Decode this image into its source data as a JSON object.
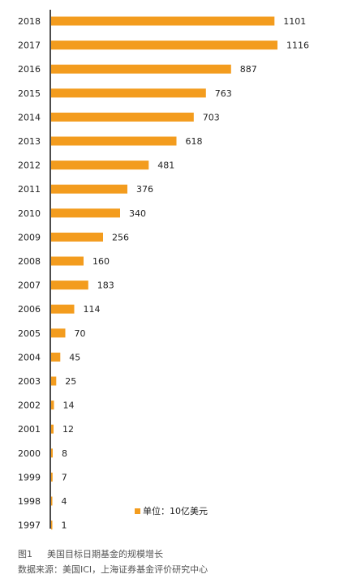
{
  "chart_data": {
    "type": "bar",
    "orientation": "horizontal",
    "categories": [
      "2018",
      "2017",
      "2016",
      "2015",
      "2014",
      "2013",
      "2012",
      "2011",
      "2010",
      "2009",
      "2008",
      "2007",
      "2006",
      "2005",
      "2004",
      "2003",
      "2002",
      "2001",
      "2000",
      "1999",
      "1998",
      "1997"
    ],
    "values": [
      1101,
      1116,
      887,
      763,
      703,
      618,
      481,
      376,
      340,
      256,
      160,
      183,
      114,
      70,
      45,
      25,
      14,
      12,
      8,
      7,
      4,
      1
    ],
    "xlim": [
      0,
      1116
    ],
    "grid": false,
    "bar_color": "#F39C1E",
    "legend": {
      "label": "单位：10亿美元",
      "placement": "bottom-right"
    }
  },
  "caption": {
    "figure_number": "图1",
    "figure_title": "美国目标日期基金的规模增长",
    "source": "数据来源：美国ICI，上海证券基金评价研究中心"
  }
}
